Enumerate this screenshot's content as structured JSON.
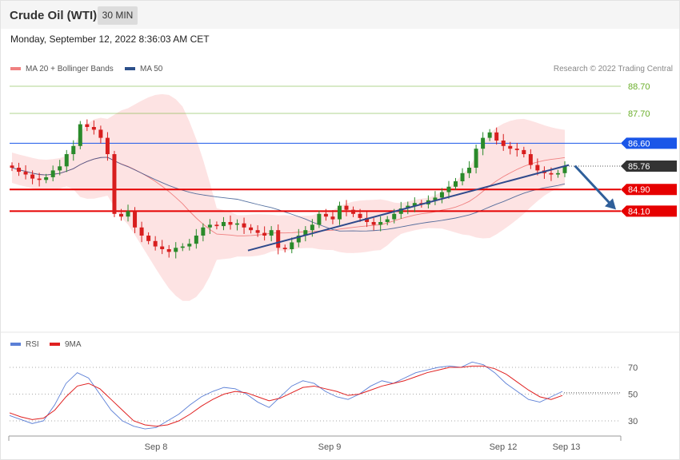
{
  "header": {
    "instrument": "Crude Oil (WTI)",
    "timeframe": "30 MIN"
  },
  "timestamp": "Monday, September 12, 2022 8:36:03 AM CET",
  "legend": {
    "ma20": "MA 20 + Bollinger Bands",
    "ma50": "MA 50",
    "rsi": "RSI",
    "ma9": "9MA"
  },
  "credit": "Research © 2022 Trading Central",
  "colors": {
    "bullish": "#2a8a2a",
    "bearish": "#d81e1e",
    "bollinger_fill": "#fde3e3",
    "ma20": "#f08080",
    "ma50": "#2c4f8a",
    "trendline": "#2f4a8c",
    "arrow": "#2f5f9a",
    "support": "#e60000",
    "resistance_blue": "#1a56e8",
    "target_green": "#6aae2a",
    "last_price": "#333333",
    "rsi": "#5b7fd6",
    "rsi_ma": "#e02020"
  },
  "chart_data": [
    {
      "type": "candlestick",
      "title": "Crude Oil (WTI)",
      "timeframe": "30 MIN",
      "x_labels": [
        "Sep 8",
        "Sep 9",
        "Sep 12",
        "Sep 13"
      ],
      "ylim": [
        82.6,
        89.0
      ],
      "levels": [
        {
          "value": 88.7,
          "label": "88.70",
          "kind": "target"
        },
        {
          "value": 87.7,
          "label": "87.70",
          "kind": "target"
        },
        {
          "value": 86.6,
          "label": "86.60",
          "kind": "resistance"
        },
        {
          "value": 85.76,
          "label": "85.76",
          "kind": "last"
        },
        {
          "value": 84.9,
          "label": "84.90",
          "kind": "support"
        },
        {
          "value": 84.1,
          "label": "84.10",
          "kind": "support"
        }
      ],
      "trendline": {
        "from": [
          0.39,
          82.65
        ],
        "to": [
          0.915,
          85.8
        ]
      },
      "projection": {
        "from": [
          0.925,
          85.77
        ],
        "to": [
          1.0,
          84.1
        ]
      },
      "closes": [
        85.7,
        85.55,
        85.45,
        85.3,
        85.25,
        85.35,
        85.6,
        85.75,
        86.2,
        86.5,
        87.3,
        87.2,
        87.1,
        86.8,
        86.2,
        84.0,
        83.9,
        84.1,
        83.5,
        83.2,
        83.0,
        82.8,
        82.7,
        82.6,
        82.75,
        82.8,
        82.9,
        83.2,
        83.5,
        83.6,
        83.55,
        83.7,
        83.6,
        83.65,
        83.5,
        83.4,
        83.3,
        83.2,
        83.4,
        82.75,
        82.7,
        82.95,
        83.2,
        83.4,
        83.6,
        84.0,
        83.9,
        83.8,
        84.3,
        84.15,
        84.0,
        83.85,
        83.7,
        83.6,
        83.7,
        83.8,
        84.0,
        84.2,
        84.3,
        84.4,
        84.35,
        84.5,
        84.6,
        84.8,
        85.0,
        85.2,
        85.5,
        85.7,
        86.4,
        86.8,
        87.0,
        86.7,
        86.5,
        86.4,
        86.35,
        86.2,
        85.8,
        85.6,
        85.5,
        85.45,
        85.5,
        85.76
      ]
    },
    {
      "type": "line",
      "title": "RSI",
      "series": [
        {
          "name": "RSI",
          "values": [
            34,
            31,
            28,
            30,
            42,
            58,
            66,
            62,
            50,
            38,
            30,
            26,
            24,
            25,
            30,
            35,
            42,
            48,
            52,
            55,
            54,
            50,
            44,
            40,
            48,
            56,
            60,
            58,
            52,
            48,
            46,
            50,
            56,
            60,
            58,
            62,
            66,
            68,
            70,
            71,
            70,
            74,
            72,
            66,
            58,
            52,
            46,
            44,
            48,
            52
          ]
        },
        {
          "name": "9MA",
          "values": [
            36,
            33,
            31,
            32,
            38,
            48,
            56,
            58,
            54,
            46,
            38,
            30,
            27,
            26,
            27,
            30,
            35,
            41,
            46,
            50,
            52,
            51,
            48,
            45,
            47,
            51,
            55,
            56,
            54,
            52,
            49,
            50,
            53,
            56,
            58,
            60,
            63,
            66,
            68,
            70,
            70,
            71,
            71,
            69,
            65,
            59,
            53,
            48,
            46,
            49
          ]
        }
      ],
      "levels": [
        70,
        50,
        30
      ],
      "ylim": [
        18,
        80
      ]
    }
  ]
}
